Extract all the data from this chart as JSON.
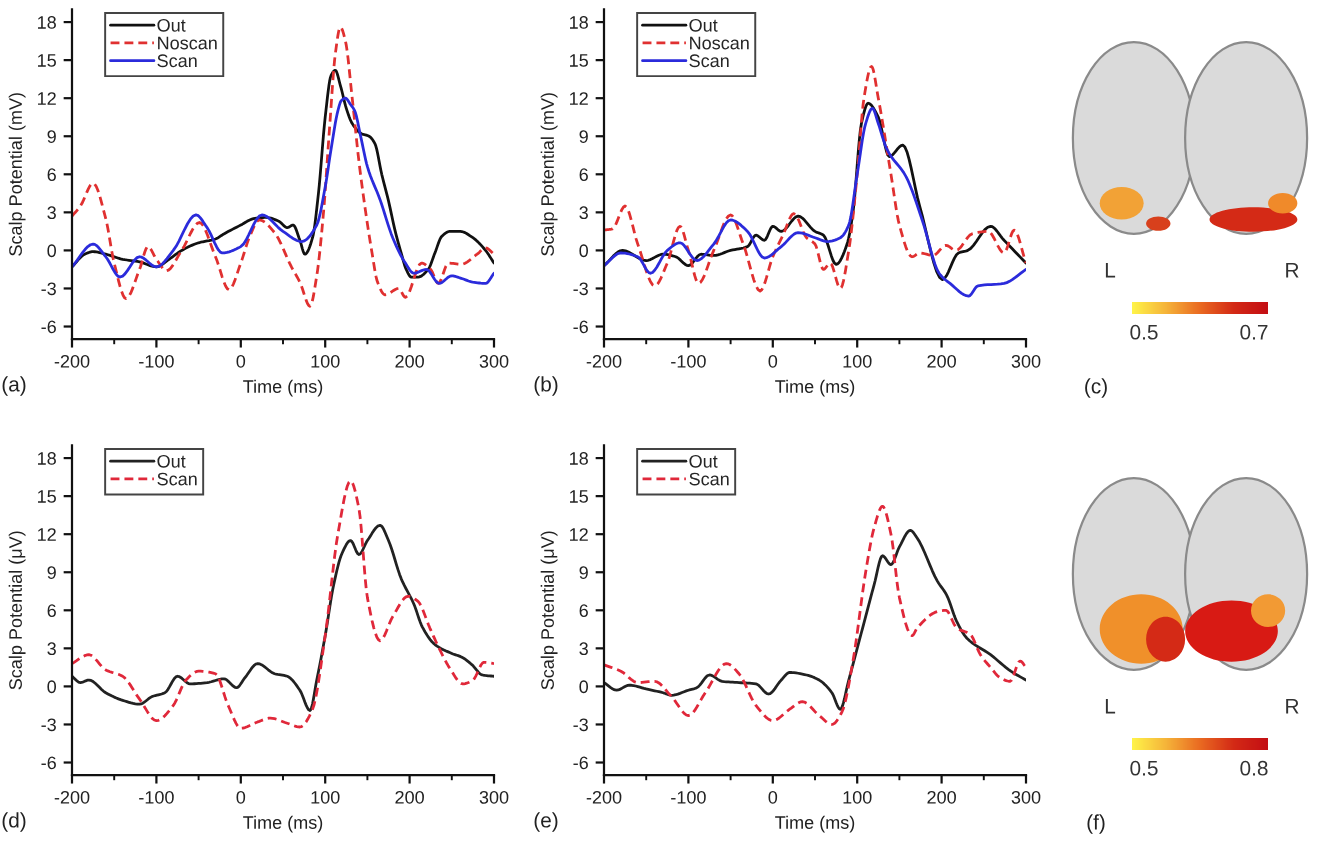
{
  "chart_data": [
    {
      "type": "line",
      "xlabel": "Time (ms)",
      "ylabel": "Scalp Potential (mV)",
      "annotations": [
        "(a)"
      ],
      "xlim": [
        -200,
        300
      ],
      "ylim": [
        -7,
        19
      ],
      "xticks": [
        -200,
        {
          "value": -150,
          "label": null
        },
        -100,
        {
          "value": -50,
          "label": null
        },
        0,
        {
          "value": 50,
          "label": null
        },
        100,
        {
          "value": 150,
          "label": null
        },
        200,
        {
          "value": 250,
          "label": null
        },
        300
      ],
      "yticks": [
        -6,
        -3,
        0,
        3,
        6,
        9,
        12,
        15,
        18
      ],
      "legend": "top left",
      "series": [
        {
          "name": "Out",
          "color": "#111111",
          "line_style": "solid",
          "x": [
            -200,
            -185,
            -175,
            -160,
            -140,
            -120,
            -100,
            -85,
            -70,
            -50,
            -30,
            -20,
            0,
            15,
            30,
            45,
            55,
            62,
            70,
            76,
            85,
            92,
            100,
            107,
            112,
            118,
            125,
            132,
            143,
            152,
            159,
            167,
            175,
            183,
            190,
            196,
            202,
            210,
            222,
            230,
            238,
            248,
            260,
            275,
            290,
            300
          ],
          "values": [
            -1.3,
            -0.3,
            -0.1,
            -0.3,
            -0.7,
            -0.9,
            -1.3,
            -0.7,
            0.0,
            0.6,
            0.9,
            1.3,
            2.0,
            2.5,
            2.6,
            2.3,
            1.8,
            2.0,
            0.8,
            -0.3,
            1.0,
            4.5,
            10.5,
            13.8,
            14.2,
            13.0,
            11.2,
            10.0,
            9.2,
            9.0,
            8.4,
            6.0,
            3.9,
            1.5,
            -0.2,
            -1.5,
            -2.1,
            -2.1,
            -1.5,
            -0.2,
            1.1,
            1.5,
            1.5,
            1.0,
            0.0,
            -1.0
          ]
        },
        {
          "name": "Noscan",
          "color": "#e03030",
          "line_style": "dashed",
          "x": [
            -200,
            -190,
            -175,
            -160,
            -150,
            -136,
            -120,
            -110,
            -100,
            -88,
            -70,
            -49,
            -30,
            -14,
            0,
            10,
            22,
            40,
            60,
            70,
            82,
            90,
            98,
            105,
            112,
            118,
            124,
            132,
            140,
            148,
            155,
            162,
            171,
            187,
            195,
            214,
            225,
            234,
            246,
            261,
            280,
            290,
            300
          ],
          "values": [
            2.7,
            3.5,
            5.3,
            2.5,
            -1.0,
            -3.8,
            -1.5,
            0.3,
            -0.7,
            -1.6,
            0.0,
            2.2,
            -0.5,
            -3.1,
            -1.0,
            1.0,
            2.4,
            1.4,
            -1.3,
            -2.5,
            -4.4,
            -2.0,
            3.0,
            9.5,
            15.5,
            17.6,
            16.5,
            12.0,
            7.0,
            3.0,
            0.0,
            -2.5,
            -3.5,
            -3.0,
            -3.7,
            -1.0,
            -1.5,
            -2.6,
            -1.0,
            -1.1,
            -0.3,
            0.2,
            -0.3
          ]
        },
        {
          "name": "Scan",
          "color": "#2b2bdb",
          "line_style": "solid",
          "x": [
            -200,
            -175,
            -160,
            -143,
            -120,
            -100,
            -80,
            -53,
            -40,
            -22,
            0,
            25,
            50,
            72,
            90,
            100,
            107,
            115,
            119,
            124,
            130,
            135,
            142,
            150,
            165,
            180,
            195,
            205,
            220,
            235,
            250,
            261,
            275,
            290,
            300
          ],
          "values": [
            -1.3,
            0.5,
            -0.5,
            -2.1,
            -0.5,
            -1.3,
            0.0,
            2.8,
            1.8,
            -0.2,
            0.3,
            2.8,
            1.5,
            0.7,
            2.0,
            5.0,
            8.0,
            11.0,
            11.8,
            12.0,
            11.5,
            11.0,
            9.0,
            6.6,
            4.0,
            1.0,
            -1.0,
            -1.8,
            -1.5,
            -2.6,
            -2.0,
            -2.2,
            -2.5,
            -2.6,
            -1.8
          ]
        }
      ]
    },
    {
      "type": "line",
      "xlabel": "Time (ms)",
      "ylabel": "Scalp Potential (mV)",
      "annotations": [
        "(b)"
      ],
      "xlim": [
        -200,
        300
      ],
      "ylim": [
        -7,
        19
      ],
      "xticks": [
        -200,
        {
          "value": -150,
          "label": null
        },
        -100,
        {
          "value": -50,
          "label": null
        },
        0,
        {
          "value": 50,
          "label": null
        },
        100,
        {
          "value": 150,
          "label": null
        },
        200,
        {
          "value": 250,
          "label": null
        },
        300
      ],
      "yticks": [
        -6,
        -3,
        0,
        3,
        6,
        9,
        12,
        15,
        18
      ],
      "legend": "top left",
      "series": [
        {
          "name": "Out",
          "color": "#111111",
          "line_style": "solid",
          "x": [
            -200,
            -178,
            -150,
            -130,
            -115,
            -100,
            -85,
            -70,
            -50,
            -30,
            -20,
            -10,
            0,
            10,
            30,
            50,
            60,
            75,
            88,
            95,
            105,
            113,
            125,
            138,
            154,
            174,
            201,
            220,
            231,
            258,
            274,
            300
          ],
          "values": [
            -1.2,
            0.0,
            -0.8,
            -0.3,
            -0.5,
            -1.2,
            -0.3,
            -0.4,
            0.0,
            0.3,
            1.2,
            0.8,
            1.9,
            1.5,
            2.7,
            1.5,
            1.2,
            -1.1,
            0.5,
            3.0,
            10.0,
            11.6,
            10.5,
            7.4,
            8.3,
            3.5,
            -2.3,
            -0.2,
            0.0,
            1.9,
            0.8,
            -1.0
          ]
        },
        {
          "name": "Noscan",
          "color": "#e03030",
          "line_style": "dashed",
          "x": [
            -200,
            -190,
            -175,
            -160,
            -140,
            -125,
            -110,
            -100,
            -88,
            -70,
            -50,
            -35,
            -15,
            0,
            12,
            25,
            40,
            50,
            60,
            68,
            80,
            90,
            100,
            108,
            117,
            125,
            140,
            150,
            165,
            174,
            190,
            205,
            217,
            236,
            255,
            274,
            286,
            300
          ],
          "values": [
            1.6,
            1.7,
            3.5,
            0.5,
            -2.8,
            -1.0,
            1.9,
            0.0,
            -2.6,
            0.0,
            2.8,
            0.5,
            -3.2,
            -0.5,
            1.2,
            2.9,
            1.0,
            0.5,
            -1.5,
            -1.0,
            -3.0,
            0.0,
            6.0,
            12.0,
            14.5,
            12.0,
            6.0,
            2.0,
            -0.5,
            -0.2,
            -0.4,
            0.4,
            0.0,
            1.3,
            1.5,
            -0.2,
            1.6,
            -1.0
          ]
        },
        {
          "name": "Scan",
          "color": "#2b2bdb",
          "line_style": "solid",
          "x": [
            -200,
            -180,
            -160,
            -145,
            -125,
            -110,
            -90,
            -70,
            -50,
            -30,
            -10,
            10,
            30,
            50,
            65,
            80,
            90,
            100,
            110,
            118,
            125,
            135,
            158,
            177,
            197,
            210,
            232,
            243,
            274,
            300
          ],
          "values": [
            -1.2,
            -0.2,
            -0.5,
            -1.8,
            0.0,
            0.6,
            -0.8,
            0.5,
            2.4,
            1.5,
            -0.6,
            0.3,
            1.4,
            1.0,
            0.7,
            1.0,
            2.0,
            6.0,
            10.0,
            11.2,
            10.0,
            8.0,
            5.8,
            2.4,
            -1.8,
            -2.6,
            -3.6,
            -2.8,
            -2.6,
            -1.5
          ]
        }
      ]
    },
    {
      "type": "other",
      "annotations": [
        "L",
        "R",
        "0.5",
        "0.7",
        "(c)"
      ]
    },
    {
      "type": "line",
      "xlabel": "Time (ms)",
      "ylabel": "Scalp Potential (μV)",
      "annotations": [
        "(d)"
      ],
      "xlim": [
        -200,
        300
      ],
      "ylim": [
        -7,
        19
      ],
      "xticks": [
        -200,
        {
          "value": -150,
          "label": null
        },
        -100,
        {
          "value": -50,
          "label": null
        },
        0,
        {
          "value": 50,
          "label": null
        },
        100,
        {
          "value": 150,
          "label": null
        },
        200,
        {
          "value": 250,
          "label": null
        },
        300
      ],
      "yticks": [
        -6,
        -3,
        0,
        3,
        6,
        9,
        12,
        15,
        18
      ],
      "legend": "top left",
      "series": [
        {
          "name": "Out",
          "color": "#222222",
          "line_style": "solid",
          "x": [
            -200,
            -190,
            -180,
            -160,
            -140,
            -120,
            -105,
            -90,
            -75,
            -60,
            -40,
            -20,
            -5,
            5,
            20,
            40,
            55,
            70,
            82,
            90,
            100,
            110,
            120,
            130,
            140,
            150,
            165,
            175,
            190,
            205,
            215,
            230,
            250,
            262,
            274,
            286,
            300
          ],
          "values": [
            0.8,
            0.3,
            0.5,
            -0.5,
            -1.1,
            -1.4,
            -0.8,
            -0.5,
            0.8,
            0.2,
            0.3,
            0.6,
            -0.1,
            0.7,
            1.8,
            1.0,
            0.8,
            -0.3,
            -1.9,
            0.5,
            4.0,
            8.0,
            10.5,
            11.5,
            10.4,
            11.5,
            12.7,
            11.5,
            8.5,
            6.5,
            4.7,
            3.3,
            2.6,
            2.3,
            1.7,
            0.9,
            0.8
          ]
        },
        {
          "name": "Scan",
          "color": "#e0283a",
          "line_style": "dashed",
          "x": [
            -200,
            -180,
            -160,
            -140,
            -120,
            -100,
            -80,
            -65,
            -50,
            -30,
            -15,
            0,
            20,
            35,
            55,
            70,
            85,
            100,
            115,
            130,
            140,
            150,
            165,
            180,
            198,
            210,
            224,
            235,
            247,
            263,
            275,
            288,
            300
          ],
          "values": [
            1.8,
            2.5,
            1.3,
            0.8,
            -1.0,
            -2.7,
            -1.5,
            0.5,
            1.2,
            1.0,
            -1.5,
            -3.3,
            -2.8,
            -2.5,
            -2.9,
            -3.2,
            -1.8,
            4.0,
            12.0,
            16.2,
            14.0,
            7.0,
            3.6,
            5.5,
            7.1,
            6.7,
            4.6,
            3.0,
            1.5,
            0.2,
            0.5,
            1.9,
            1.8
          ]
        }
      ]
    },
    {
      "type": "line",
      "xlabel": "Time (ms)",
      "ylabel": "Scalp Potential (μV)",
      "annotations": [
        "(e)"
      ],
      "xlim": [
        -200,
        300
      ],
      "ylim": [
        -7,
        19
      ],
      "xticks": [
        -200,
        {
          "value": -150,
          "label": null
        },
        -100,
        {
          "value": -50,
          "label": null
        },
        0,
        {
          "value": 50,
          "label": null
        },
        100,
        {
          "value": 150,
          "label": null
        },
        200,
        {
          "value": 250,
          "label": null
        },
        300
      ],
      "yticks": [
        -6,
        -3,
        0,
        3,
        6,
        9,
        12,
        15,
        18
      ],
      "legend": "top left",
      "series": [
        {
          "name": "Out",
          "color": "#222222",
          "line_style": "solid",
          "x": [
            -200,
            -185,
            -170,
            -150,
            -130,
            -120,
            -100,
            -90,
            -75,
            -60,
            -40,
            -20,
            -5,
            10,
            20,
            40,
            55,
            70,
            80,
            90,
            100,
            110,
            120,
            130,
            140,
            150,
            163,
            171,
            195,
            206,
            218,
            230,
            258,
            282,
            300
          ],
          "values": [
            0.3,
            -0.3,
            0.1,
            -0.2,
            -0.5,
            -0.7,
            -0.3,
            -0.1,
            0.9,
            0.4,
            0.3,
            0.2,
            -0.6,
            0.5,
            1.1,
            0.9,
            0.5,
            -0.5,
            -1.8,
            0.5,
            3.0,
            5.5,
            8.0,
            10.3,
            9.6,
            11.0,
            12.3,
            11.7,
            8.3,
            7.2,
            5.1,
            3.8,
            2.5,
            1.2,
            0.5
          ]
        },
        {
          "name": "Scan",
          "color": "#e0283a",
          "line_style": "dashed",
          "x": [
            -200,
            -180,
            -160,
            -140,
            -120,
            -100,
            -80,
            -55,
            -40,
            -20,
            0,
            20,
            35,
            55,
            70,
            82,
            95,
            110,
            120,
            130,
            140,
            150,
            165,
            171,
            195,
            205,
            218,
            234,
            246,
            258,
            269,
            281,
            293,
            300
          ],
          "values": [
            1.7,
            1.2,
            0.3,
            0.4,
            -0.8,
            -2.3,
            -0.5,
            1.8,
            1.0,
            -1.5,
            -2.7,
            -1.8,
            -1.2,
            -2.3,
            -3.0,
            -2.0,
            2.0,
            9.0,
            12.5,
            14.2,
            12.0,
            7.0,
            4.0,
            4.6,
            5.9,
            6.0,
            4.6,
            4.1,
            2.5,
            1.5,
            0.7,
            0.4,
            2.0,
            1.5
          ]
        }
      ]
    },
    {
      "type": "other",
      "annotations": [
        "L",
        "R",
        "0.5",
        "0.8",
        "(f)"
      ]
    }
  ]
}
